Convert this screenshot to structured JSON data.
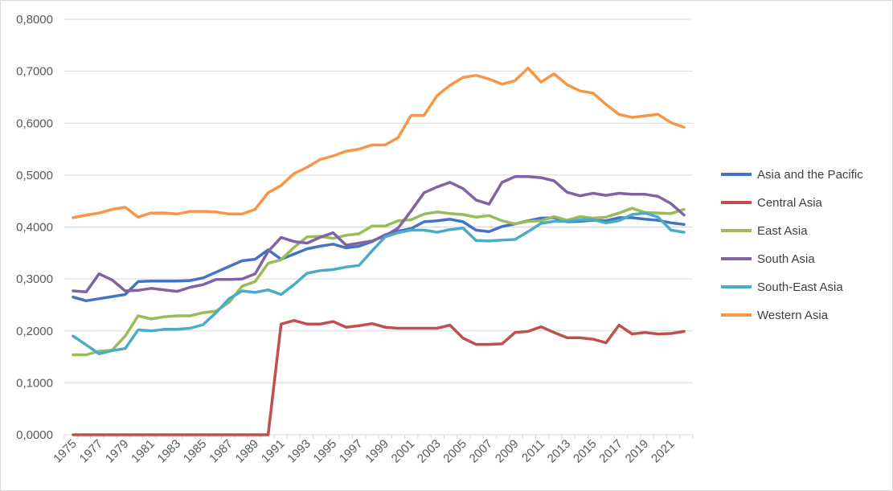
{
  "chart_data": {
    "type": "line",
    "title": "",
    "xlabel": "",
    "ylabel": "",
    "ylim": [
      0,
      0.8
    ],
    "y_ticks": [
      "0,0000",
      "0,1000",
      "0,2000",
      "0,3000",
      "0,4000",
      "0,5000",
      "0,6000",
      "0,7000",
      "0,8000"
    ],
    "x_tick_labels": [
      "1975",
      "1977",
      "1979",
      "1981",
      "1983",
      "1985",
      "1987",
      "1989",
      "1991",
      "1993",
      "1995",
      "1997",
      "1999",
      "2001",
      "2003",
      "2005",
      "2007",
      "2009",
      "2011",
      "2013",
      "2015",
      "2017",
      "2019",
      "2021"
    ],
    "x": [
      1975,
      1976,
      1977,
      1978,
      1979,
      1980,
      1981,
      1982,
      1983,
      1984,
      1985,
      1986,
      1987,
      1988,
      1989,
      1990,
      1991,
      1992,
      1993,
      1994,
      1995,
      1996,
      1997,
      1998,
      1999,
      2000,
      2001,
      2002,
      2003,
      2004,
      2005,
      2006,
      2007,
      2008,
      2009,
      2010,
      2011,
      2012,
      2013,
      2014,
      2015,
      2016,
      2017,
      2018,
      2019,
      2020,
      2021,
      2022
    ],
    "grid": true,
    "legend": "right",
    "series": [
      {
        "name": "Asia and the Pacific",
        "color": "#4472c4",
        "values": [
          0.265,
          0.258,
          0.262,
          0.266,
          0.27,
          0.295,
          0.296,
          0.296,
          0.296,
          0.297,
          0.302,
          0.313,
          0.324,
          0.335,
          0.338,
          0.356,
          0.338,
          0.348,
          0.358,
          0.363,
          0.367,
          0.36,
          0.363,
          0.372,
          0.385,
          0.392,
          0.397,
          0.41,
          0.412,
          0.415,
          0.41,
          0.394,
          0.391,
          0.401,
          0.406,
          0.412,
          0.417,
          0.418,
          0.41,
          0.411,
          0.413,
          0.412,
          0.418,
          0.418,
          0.415,
          0.413,
          0.408,
          0.405
        ]
      },
      {
        "name": "Central Asia",
        "color": "#c0504d",
        "values": [
          0,
          0,
          0,
          0,
          0,
          0,
          0,
          0,
          0,
          0,
          0,
          0,
          0,
          0,
          0,
          0,
          0.213,
          0.22,
          0.213,
          0.213,
          0.218,
          0.207,
          0.21,
          0.214,
          0.207,
          0.205,
          0.205,
          0.205,
          0.205,
          0.211,
          0.186,
          0.174,
          0.174,
          0.175,
          0.197,
          0.199,
          0.208,
          0.197,
          0.187,
          0.187,
          0.184,
          0.177,
          0.211,
          0.194,
          0.197,
          0.194,
          0.195,
          0.199
        ]
      },
      {
        "name": "East Asia",
        "color": "#9bbb59",
        "values": [
          0.154,
          0.154,
          0.161,
          0.163,
          0.19,
          0.229,
          0.223,
          0.227,
          0.229,
          0.229,
          0.235,
          0.238,
          0.255,
          0.286,
          0.295,
          0.33,
          0.337,
          0.361,
          0.381,
          0.382,
          0.378,
          0.384,
          0.387,
          0.402,
          0.402,
          0.412,
          0.414,
          0.425,
          0.429,
          0.426,
          0.424,
          0.419,
          0.422,
          0.412,
          0.406,
          0.411,
          0.412,
          0.42,
          0.413,
          0.42,
          0.417,
          0.419,
          0.427,
          0.436,
          0.428,
          0.427,
          0.426,
          0.434
        ]
      },
      {
        "name": "South Asia",
        "color": "#8064a2",
        "values": [
          0.277,
          0.275,
          0.31,
          0.298,
          0.277,
          0.278,
          0.282,
          0.279,
          0.276,
          0.284,
          0.289,
          0.299,
          0.299,
          0.3,
          0.31,
          0.353,
          0.38,
          0.372,
          0.369,
          0.38,
          0.389,
          0.365,
          0.369,
          0.373,
          0.383,
          0.398,
          0.431,
          0.466,
          0.477,
          0.486,
          0.474,
          0.452,
          0.444,
          0.486,
          0.497,
          0.497,
          0.495,
          0.489,
          0.467,
          0.46,
          0.465,
          0.461,
          0.465,
          0.463,
          0.463,
          0.459,
          0.445,
          0.423
        ]
      },
      {
        "name": "South-East Asia",
        "color": "#4bacc6",
        "values": [
          0.19,
          0.173,
          0.156,
          0.162,
          0.166,
          0.202,
          0.2,
          0.203,
          0.203,
          0.205,
          0.212,
          0.235,
          0.262,
          0.277,
          0.274,
          0.279,
          0.27,
          0.289,
          0.311,
          0.316,
          0.318,
          0.323,
          0.326,
          0.354,
          0.381,
          0.389,
          0.394,
          0.394,
          0.39,
          0.395,
          0.398,
          0.374,
          0.373,
          0.375,
          0.376,
          0.391,
          0.407,
          0.411,
          0.411,
          0.414,
          0.414,
          0.408,
          0.412,
          0.424,
          0.427,
          0.419,
          0.394,
          0.39
        ]
      },
      {
        "name": "Western Asia",
        "color": "#f79646",
        "values": [
          0.418,
          0.423,
          0.427,
          0.434,
          0.438,
          0.419,
          0.427,
          0.427,
          0.425,
          0.43,
          0.43,
          0.429,
          0.425,
          0.425,
          0.434,
          0.466,
          0.48,
          0.503,
          0.515,
          0.53,
          0.537,
          0.546,
          0.55,
          0.558,
          0.558,
          0.572,
          0.615,
          0.615,
          0.653,
          0.673,
          0.688,
          0.692,
          0.685,
          0.675,
          0.682,
          0.706,
          0.679,
          0.695,
          0.674,
          0.662,
          0.658,
          0.636,
          0.617,
          0.611,
          0.614,
          0.617,
          0.601,
          0.592
        ]
      }
    ]
  }
}
